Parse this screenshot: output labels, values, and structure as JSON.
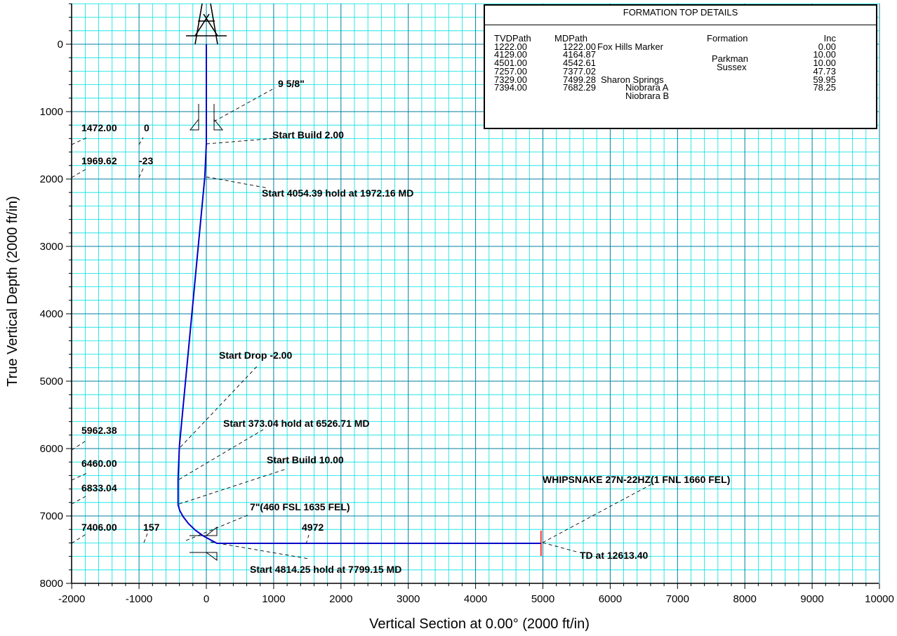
{
  "chart_data": {
    "type": "line",
    "title": "",
    "xlabel": "Vertical Section at 0.00° (2000 ft/in)",
    "ylabel": "True Vertical Depth (2000 ft/in)",
    "xlim": [
      -2000,
      10000
    ],
    "ylim": [
      8000,
      -500
    ],
    "y_inverted": true,
    "grid": "on",
    "x_ticks": [
      -2000,
      -1000,
      0,
      1000,
      2000,
      3000,
      4000,
      5000,
      6000,
      7000,
      8000,
      9000,
      10000
    ],
    "y_ticks": [
      0,
      1000,
      2000,
      3000,
      4000,
      5000,
      6000,
      7000,
      8000
    ],
    "colors": {
      "wellpath": "#0000c8",
      "grid_minor": "#00e0e0",
      "grid_major": "#007f9f",
      "target_marker": "#ff0000"
    },
    "series": [
      {
        "values": [
          {
            "x": 0,
            "y": 0
          },
          {
            "x": 0,
            "y": 1472
          },
          {
            "x": -23,
            "y": 1969.62
          },
          {
            "x": -400,
            "y": 5962.38
          },
          {
            "x": -420,
            "y": 6460
          },
          {
            "x": -420,
            "y": 6833.04
          },
          {
            "x": -395,
            "y": 6920
          },
          {
            "x": -345,
            "y": 7010
          },
          {
            "x": -265,
            "y": 7115
          },
          {
            "x": -165,
            "y": 7210
          },
          {
            "x": -40,
            "y": 7300
          },
          {
            "x": 157,
            "y": 7406
          },
          {
            "x": 4972,
            "y": 7406
          }
        ]
      }
    ],
    "annotations": [
      {
        "text": "9 5/8\""
      },
      {
        "text": "Start Build 2.00"
      },
      {
        "text": "Start 4054.39 hold at 1972.16 MD"
      },
      {
        "text": "Start Drop -2.00"
      },
      {
        "text": "Start 373.04 hold at 6526.71 MD"
      },
      {
        "text": "Start Build 10.00"
      },
      {
        "text": "7\"(460 FSL 1635 FEL)"
      },
      {
        "text": "Start 4814.25 hold at 7799.15 MD"
      },
      {
        "text": "WHIPSNAKE 27N-22HZ(1 FNL 1660 FEL)"
      },
      {
        "text": "TD at 12613.40"
      }
    ],
    "point_labels": [
      {
        "tvd": "1472.00",
        "vs": "0"
      },
      {
        "tvd": "1969.62",
        "vs": "-23"
      },
      {
        "tvd": "5962.38",
        "vs": ""
      },
      {
        "tvd": "6460.00",
        "vs": ""
      },
      {
        "tvd": "6833.04",
        "vs": ""
      },
      {
        "tvd": "7406.00",
        "vs": "157"
      },
      {
        "tvd": "",
        "vs": "4972"
      }
    ],
    "formation_table": {
      "title": "FORMATION TOP DETAILS",
      "headers": [
        "TVDPath",
        "MDPath",
        "Formation",
        "Inc"
      ],
      "rows": [
        [
          "1222.00",
          "1222.00",
          "Fox Hills Marker",
          "0.00"
        ],
        [
          "4129.00",
          "4164.87",
          "Parkman",
          "10.00"
        ],
        [
          "4501.00",
          "4542.61",
          "Sussex",
          "10.00"
        ],
        [
          "7257.00",
          "7377.02",
          "Sharon Springs",
          "47.73"
        ],
        [
          "7329.00",
          "7499.28",
          "Niobrara A",
          "59.95"
        ],
        [
          "7394.00",
          "7682.29",
          "Niobrara B",
          "78.25"
        ]
      ]
    }
  }
}
